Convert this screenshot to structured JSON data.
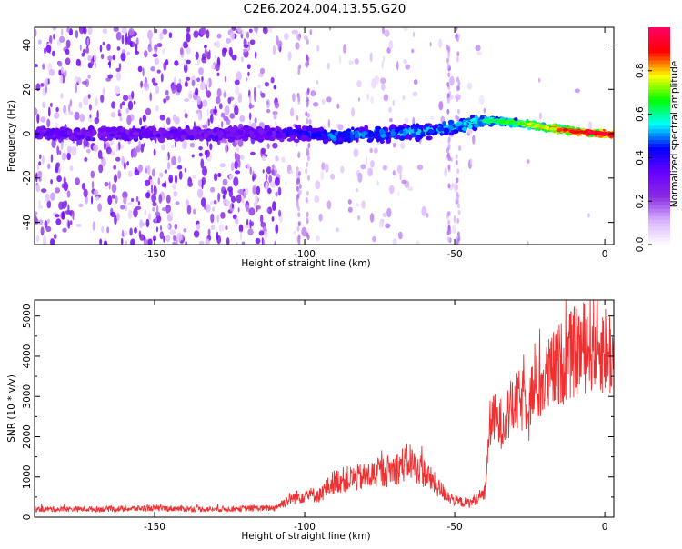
{
  "title": "C2E6.2024.004.13.55.G20",
  "chart_data": [
    {
      "type": "heatmap",
      "xlabel": "Height of straight line (km)",
      "ylabel": "Frequency (Hz)",
      "xlim": [
        -190,
        3
      ],
      "ylim": [
        -50,
        48
      ],
      "xticks": [
        -150,
        -100,
        -50,
        0
      ],
      "yticks": [
        -40,
        -20,
        0,
        20,
        40
      ],
      "colorbar": {
        "label": "Normalized spectral amplitude",
        "range": [
          0.0,
          1.0
        ],
        "ticks": [
          0.0,
          0.2,
          0.4,
          0.6,
          0.8
        ],
        "colors": [
          "#ffffff",
          "#d9b3ff",
          "#8a2be2",
          "#6a00ff",
          "#0000ff",
          "#00ffff",
          "#00ff00",
          "#ffff00",
          "#ff0000",
          "#ff0066"
        ]
      },
      "trace": {
        "description_points_x": [
          -190,
          -150,
          -110,
          -100,
          -90,
          -70,
          -50,
          -40,
          -30,
          -20,
          -10,
          0
        ],
        "center_frequency": [
          0,
          0,
          0,
          0,
          -1,
          0,
          3,
          6,
          5,
          3,
          1,
          0
        ],
        "peak_amplitude": [
          0.35,
          0.35,
          0.35,
          0.45,
          0.5,
          0.5,
          0.55,
          0.6,
          0.7,
          0.8,
          0.9,
          0.95
        ]
      }
    },
    {
      "type": "line",
      "xlabel": "Height of straight line (km)",
      "ylabel": "SNR (10 * v/v)",
      "xlim": [
        -190,
        3
      ],
      "ylim": [
        0,
        5400
      ],
      "xticks": [
        -150,
        -100,
        -50,
        0
      ],
      "yticks": [
        0,
        1000,
        2000,
        3000,
        4000,
        5000
      ],
      "series": [
        {
          "color": "#f03030",
          "x": [
            -190,
            -170,
            -150,
            -130,
            -110,
            -105,
            -100,
            -95,
            -90,
            -85,
            -80,
            -75,
            -70,
            -65,
            -60,
            -55,
            -50,
            -45,
            -40,
            -38,
            -35,
            -30,
            -25,
            -20,
            -15,
            -10,
            -5,
            0,
            3
          ],
          "y": [
            200,
            200,
            220,
            200,
            230,
            450,
            550,
            550,
            900,
            950,
            1000,
            1100,
            1200,
            1400,
            1100,
            700,
            400,
            350,
            600,
            2500,
            2300,
            2800,
            3000,
            3400,
            3800,
            4100,
            4300,
            4200,
            4000
          ]
        }
      ]
    }
  ]
}
